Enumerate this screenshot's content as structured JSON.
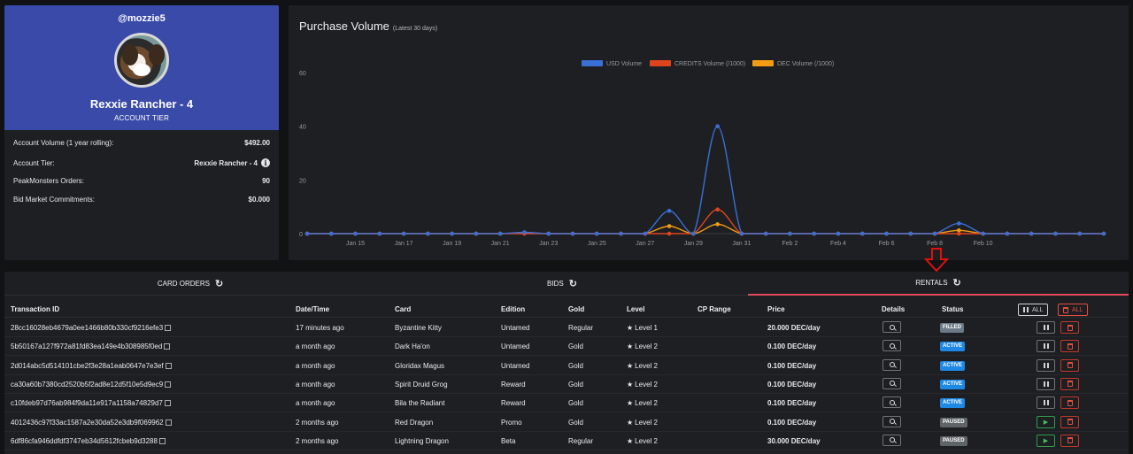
{
  "profile": {
    "username": "@mozzie5",
    "tier_name": "Rexxie Rancher - 4",
    "tier_label": "ACCOUNT TIER",
    "stats": [
      {
        "label": "Account Volume (1 year rolling):",
        "value": "$492.00"
      },
      {
        "label": "Account Tier:",
        "value": "Rexxie Rancher - 4"
      },
      {
        "label": "PeakMonsters Orders:",
        "value": "90"
      },
      {
        "label": "Bid Market Commitments:",
        "value": "$0.000"
      }
    ]
  },
  "chart": {
    "title": "Purchase Volume",
    "subtitle": "(Latest 30 days)"
  },
  "chart_data": {
    "type": "line",
    "title": "Purchase Volume",
    "ylim": [
      0,
      60
    ],
    "yticks": [
      0,
      20,
      40,
      60
    ],
    "xticks": [
      "Jan 15",
      "Jan 17",
      "Jan 19",
      "Jan 21",
      "Jan 23",
      "Jan 25",
      "Jan 27",
      "Jan 29",
      "Jan 31",
      "Feb 2",
      "Feb 4",
      "Feb 6",
      "Feb 8",
      "Feb 10"
    ],
    "legend_position": "top-center",
    "grid": false,
    "series": [
      {
        "name": "USD Volume",
        "color": "#3a6fd6",
        "values": [
          0,
          0,
          0,
          0,
          0,
          0,
          0,
          0,
          0,
          0.5,
          0,
          0,
          0,
          0,
          0,
          8.5,
          0,
          40,
          0,
          0,
          0,
          0,
          0,
          0,
          0,
          0,
          0,
          3.8,
          0,
          0,
          0,
          0,
          0,
          0
        ]
      },
      {
        "name": "CREDITS Volume (/1000)",
        "color": "#e0441e",
        "values": [
          0,
          0,
          0,
          0,
          0,
          0,
          0,
          0,
          0,
          0,
          0,
          0,
          0,
          0,
          0,
          0,
          0,
          9,
          0,
          0,
          0,
          0,
          0,
          0,
          0,
          0,
          0,
          0,
          0,
          0,
          0,
          0,
          0,
          0
        ]
      },
      {
        "name": "DEC Volume (/1000)",
        "color": "#f39c12",
        "values": [
          0,
          0,
          0,
          0,
          0,
          0,
          0,
          0,
          0,
          0.4,
          0,
          0,
          0,
          0,
          0,
          2.8,
          0,
          3.5,
          0,
          0,
          0,
          0,
          0,
          0,
          0,
          0,
          0,
          1.2,
          0,
          0,
          0,
          0,
          0,
          0
        ]
      }
    ]
  },
  "tabs": [
    {
      "label": "CARD ORDERS"
    },
    {
      "label": "BIDS"
    },
    {
      "label": "RENTALS"
    }
  ],
  "table": {
    "headers": {
      "tx": "Transaction ID",
      "date": "Date/Time",
      "card": "Card",
      "edition": "Edition",
      "gold": "Gold",
      "level": "Level",
      "cp": "CP Range",
      "price": "Price",
      "details": "Details",
      "status": "Status"
    },
    "all_pause_label": "ALL",
    "all_delete_label": "ALL",
    "rows": [
      {
        "tx": "28cc16028eb4679a0ee1466b80b330cf9216efe3",
        "date": "17 minutes ago",
        "card": "Byzantine Kitty",
        "edition": "Untamed",
        "gold": "Regular",
        "level": "Level 1",
        "price": "20.000 DEC/day",
        "status": "FILLED",
        "status_type": "filled",
        "action": "pause"
      },
      {
        "tx": "5b50167a127f972a81fd83ea149e4b308985f0ed",
        "date": "a month ago",
        "card": "Dark Ha'on",
        "edition": "Untamed",
        "gold": "Gold",
        "level": "Level 2",
        "price": "0.100 DEC/day",
        "status": "ACTIVE",
        "status_type": "active",
        "action": "pause"
      },
      {
        "tx": "2d014abc5d514101cbe2f3e28a1eab0647e7e3ef",
        "date": "a month ago",
        "card": "Gloridax Magus",
        "edition": "Untamed",
        "gold": "Gold",
        "level": "Level 2",
        "price": "0.100 DEC/day",
        "status": "ACTIVE",
        "status_type": "active",
        "action": "pause"
      },
      {
        "tx": "ca30a60b7380cd2520b5f2ad8e12d5f10e5d9ec9",
        "date": "a month ago",
        "card": "Spirit Druid Grog",
        "edition": "Reward",
        "gold": "Gold",
        "level": "Level 2",
        "price": "0.100 DEC/day",
        "status": "ACTIVE",
        "status_type": "active",
        "action": "pause"
      },
      {
        "tx": "c10fdeb97d76ab984f9da11e917a1158a74829d7",
        "date": "a month ago",
        "card": "Bila the Radiant",
        "edition": "Reward",
        "gold": "Gold",
        "level": "Level 2",
        "price": "0.100 DEC/day",
        "status": "ACTIVE",
        "status_type": "active",
        "action": "pause"
      },
      {
        "tx": "4012436c97f33ac1587a2e30da52e3db9f069962",
        "date": "2 months ago",
        "card": "Red Dragon",
        "edition": "Promo",
        "gold": "Gold",
        "level": "Level 2",
        "price": "0.100 DEC/day",
        "status": "PAUSED",
        "status_type": "paused",
        "action": "play"
      },
      {
        "tx": "6df86cfa946ddfdf3747eb34d5612fcbeb9d3288",
        "date": "2 months ago",
        "card": "Lightning Dragon",
        "edition": "Beta",
        "gold": "Regular",
        "level": "Level 2",
        "price": "30.000 DEC/day",
        "status": "PAUSED",
        "status_type": "paused",
        "action": "play"
      }
    ]
  }
}
